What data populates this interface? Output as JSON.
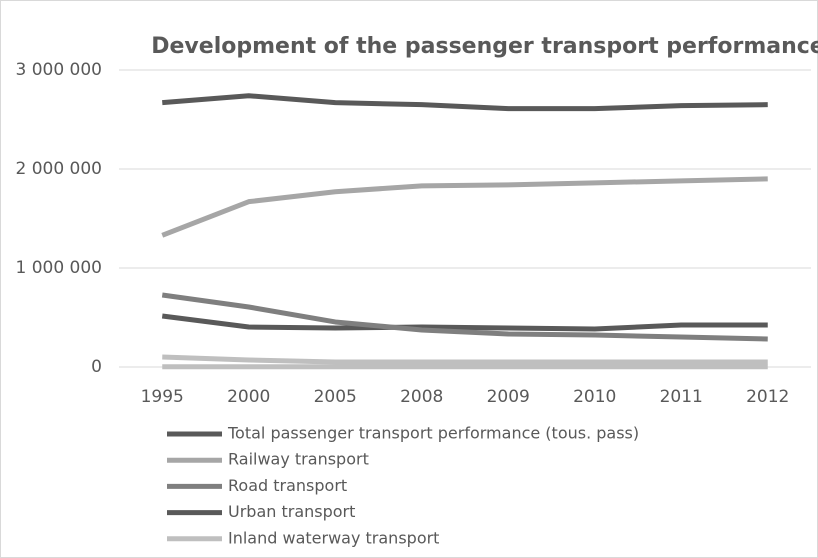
{
  "chart_data": {
    "type": "line",
    "title": "Development of the passenger transport performance",
    "categories": [
      "1995",
      "2000",
      "2005",
      "2008",
      "2009",
      "2010",
      "2011",
      "2012"
    ],
    "series": [
      {
        "name": "Total passenger transport performance  (tous. pass)",
        "color": "#595959",
        "values": [
          2670000,
          2740000,
          2670000,
          2650000,
          2610000,
          2610000,
          2640000,
          2650000
        ]
      },
      {
        "name": "Railway transport",
        "color": "#a6a6a6",
        "values": [
          1330000,
          1670000,
          1770000,
          1830000,
          1840000,
          1860000,
          1880000,
          1900000
        ]
      },
      {
        "name": "Road transport",
        "color": "#7f7f7f",
        "values": [
          727000,
          606000,
          455000,
          374000,
          333000,
          323000,
          303000,
          283000
        ]
      },
      {
        "name": "Urban transport",
        "color": "#595959",
        "values": [
          515000,
          404000,
          394000,
          404000,
          394000,
          384000,
          424000,
          424000
        ]
      },
      {
        "name": "Inland waterway transport",
        "color": "#bfbfbf",
        "values": [
          3000,
          3000,
          3000,
          3000,
          3000,
          3000,
          3000,
          3000
        ]
      },
      {
        "color": "#bfbfbf",
        "values": [
          101000,
          71000,
          51000,
          50000,
          50000,
          50000,
          50000,
          50000
        ]
      }
    ],
    "ylim": [
      0,
      3000000
    ],
    "yticks": [
      0,
      {
        "value": 1000000,
        "label": "1 000 000"
      },
      {
        "value": 2000000,
        "label": "2 000 000"
      },
      {
        "value": 3000000,
        "label": "3 000 000"
      }
    ],
    "grid": true
  }
}
